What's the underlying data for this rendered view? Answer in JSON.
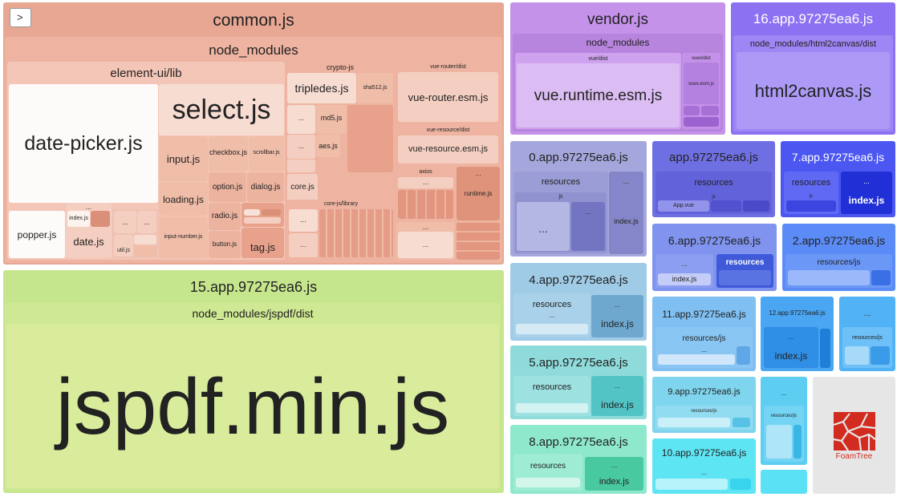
{
  "toggle_icon": "chevron-right-icon",
  "colors": {
    "common": "#e8a793",
    "jspdf": "#c6e68d",
    "vendor": "#c592ea",
    "html2canvas": "#8c72f2",
    "foamtree": "#e6e6e6",
    "foamtree_logo": "#d22b1f"
  },
  "common": {
    "title": "common.js",
    "node_modules": "node_modules",
    "element": {
      "title": "element-ui/lib",
      "date_picker": "date-picker.js",
      "select": "select.js",
      "input": "input.js",
      "loading": "loading.js",
      "input_number": "input-number.js",
      "checkbox": "checkbox.js",
      "scrollbar": "scrollbar.js",
      "option": "option.js",
      "dialog": "dialog.js",
      "radio": "radio.js",
      "button": "button.js",
      "tag": "tag.js",
      "popper": "popper.js",
      "index": "index.js",
      "date": "date.js",
      "util": "util.js",
      "more": "..."
    },
    "crypto": {
      "title": "crypto-js",
      "tripledes": "tripledes.js",
      "sha512": "sha512.js",
      "md5": "md5.js",
      "aes": "aes.js",
      "core": "core.js",
      "more": "..."
    },
    "core_js": {
      "title": "core-js/library"
    },
    "vue_router": {
      "title": "vue-router/dist",
      "file": "vue-router.esm.js"
    },
    "vue_resource": {
      "title": "vue-resource/dist",
      "file": "vue-resource.esm.js"
    },
    "axios": {
      "title": "axios",
      "runtime": "runtime.js",
      "more": "..."
    }
  },
  "jspdf": {
    "title": "15.app.97275ea6.js",
    "dist": "node_modules/jspdf/dist",
    "file": "jspdf.min.js"
  },
  "vendor": {
    "title": "vendor.js",
    "node_modules": "node_modules",
    "vue_dist": "vue/dist",
    "vue_runtime": "vue.runtime.esm.js",
    "vuex_dist": "vuex/dist",
    "vuex_file": "vuex.esm.js"
  },
  "html2canvas": {
    "title": "16.app.97275ea6.js",
    "dist": "node_modules/html2canvas/dist",
    "file": "html2canvas.js"
  },
  "chunks": {
    "c0": {
      "title": "0.app.97275ea6.js",
      "resources": "resources",
      "js": "js",
      "index": "index.js"
    },
    "app": {
      "title": "app.97275ea6.js",
      "resources": "resources",
      "js": "js",
      "app_vue": "App.vue"
    },
    "c7": {
      "title": "7.app.97275ea6.js",
      "resources": "resources",
      "js": "js",
      "index": "index.js"
    },
    "c6": {
      "title": "6.app.97275ea6.js",
      "resources": "resources",
      "index": "index.js"
    },
    "c2": {
      "title": "2.app.97275ea6.js",
      "resources": "resources/js"
    },
    "c4": {
      "title": "4.app.97275ea6.js",
      "resources": "resources",
      "index": "index.js"
    },
    "c11": {
      "title": "11.app.97275ea6.js",
      "resources": "resources/js"
    },
    "c12": {
      "title": "12.app.97275ea6.js",
      "index": "index.js"
    },
    "c5": {
      "title": "5.app.97275ea6.js",
      "resources": "resources",
      "index": "index.js"
    },
    "c9": {
      "title": "9.app.97275ea6.js",
      "resources": "resources/js"
    },
    "c8": {
      "title": "8.app.97275ea6.js",
      "resources": "resources",
      "index": "index.js"
    },
    "c10": {
      "title": "10.app.97275ea6.js"
    },
    "misc": {
      "resources": "resources/js"
    }
  },
  "more": "...",
  "foamtree": {
    "label": "FoamTree"
  }
}
